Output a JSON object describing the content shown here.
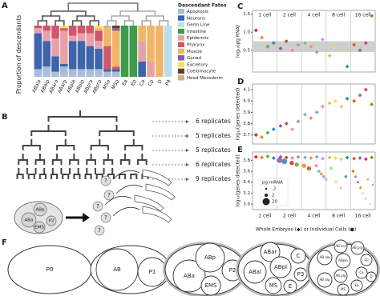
{
  "panel_labels": [
    "A",
    "B",
    "C",
    "D",
    "E",
    "F"
  ],
  "chart_data": [
    {
      "type": "bar",
      "stacked": true,
      "ylabel": "Proportion of descendants",
      "legend_title": "Descendant Fates",
      "ylim": [
        0,
        1
      ],
      "categories": [
        "ABala",
        "ABalp",
        "ABara",
        "ABarp",
        "ABpla",
        "ABplp",
        "ABpra",
        "ABprp",
        "MSa",
        "MSp",
        "Ea",
        "Ep",
        "Ca",
        "Cp",
        "D",
        "P4"
      ],
      "series": [
        {
          "name": "Apoptosis",
          "color": "#a9bcd8",
          "values": [
            0.15,
            0.2,
            0.1,
            0.2,
            0.15,
            0.15,
            0.15,
            0.15,
            0.1,
            0.1,
            0,
            0,
            0,
            0,
            0,
            0
          ]
        },
        {
          "name": "Neurons",
          "color": "#3d64ad",
          "values": [
            0.7,
            0.5,
            0.3,
            0.05,
            0.55,
            0.55,
            0.45,
            0.4,
            0.05,
            0.05,
            0,
            0,
            0.3,
            0,
            0,
            0
          ]
        },
        {
          "name": "Germ Line",
          "color": "#b9dfe6",
          "values": [
            0,
            0,
            0,
            0,
            0,
            0,
            0,
            0,
            0,
            0,
            0,
            0,
            0,
            0,
            0,
            1
          ]
        },
        {
          "name": "Intestine",
          "color": "#3e9c4a",
          "values": [
            0,
            0,
            0,
            0,
            0,
            0,
            0,
            0,
            0,
            0,
            1,
            1,
            0,
            0,
            0,
            0
          ]
        },
        {
          "name": "Epidermis",
          "color": "#e9a0aa",
          "values": [
            0.1,
            0.2,
            0.35,
            0.65,
            0.1,
            0.15,
            0.25,
            0.15,
            0,
            0,
            0,
            0,
            0.4,
            0.3,
            0,
            0
          ]
        },
        {
          "name": "Pharynx",
          "color": "#d0566a",
          "values": [
            0.05,
            0.1,
            0.25,
            0.05,
            0.2,
            0.15,
            0.15,
            0.2,
            0.45,
            0.05,
            0,
            0,
            0,
            0,
            0,
            0
          ]
        },
        {
          "name": "Muscle",
          "color": "#f2b567",
          "values": [
            0,
            0,
            0,
            0,
            0,
            0,
            0,
            0.05,
            0.35,
            0.7,
            0,
            0,
            0.3,
            0.7,
            1,
            0
          ]
        },
        {
          "name": "Gonad",
          "color": "#8b5a9e",
          "values": [
            0,
            0,
            0,
            0,
            0,
            0,
            0,
            0,
            0,
            0.05,
            0,
            0,
            0,
            0,
            0,
            0
          ]
        },
        {
          "name": "Excretory",
          "color": "#f6e15a",
          "values": [
            0,
            0,
            0,
            0.05,
            0,
            0,
            0,
            0.05,
            0,
            0,
            0,
            0,
            0,
            0,
            0,
            0
          ]
        },
        {
          "name": "Coelomocyte",
          "color": "#6b3b22",
          "values": [
            0,
            0,
            0,
            0,
            0,
            0,
            0,
            0,
            0,
            0.05,
            0,
            0,
            0,
            0,
            0,
            0
          ]
        },
        {
          "name": "Head Mesoderm",
          "color": "#c8b58a",
          "values": [
            0,
            0,
            0,
            0,
            0,
            0,
            0,
            0,
            0.05,
            0,
            0,
            0,
            0,
            0,
            0,
            0
          ]
        }
      ]
    },
    {
      "type": "scatter",
      "marker": "diamond",
      "ylabel": "log₁₀(pg RNA)",
      "stages": [
        "1 cell",
        "2 cell",
        "4 cell",
        "8 cell",
        "16 cell"
      ],
      "xlim": [
        0,
        25
      ],
      "ylim": [
        -0.1,
        1.6
      ],
      "yticks": [
        0.5,
        {
          "value": 1,
          "label": "1.0"
        },
        1.5
      ],
      "band": [
        0.45,
        0.75
      ],
      "x": [
        0.7,
        1.9,
        3.1,
        4.3,
        5.7,
        6.9,
        8.1,
        9.3,
        10.7,
        11.9,
        13.1,
        14.3,
        15.7,
        16.9,
        18.1,
        19.3,
        20.7,
        21.9,
        23.1,
        24.3
      ],
      "values": [
        1.05,
        0.85,
        0.6,
        0.7,
        0.55,
        0.75,
        0.5,
        0.65,
        0.7,
        0.6,
        0.45,
        0.8,
        0.35,
        0.6,
        0.55,
        0.05,
        0.65,
        0.5,
        0.7,
        1.45
      ],
      "colors": [
        "#e41a1c",
        "#ff7f00",
        "#4daf4a",
        "#377eb8",
        "#984ea3",
        "#a65628",
        "#f781bf",
        "#999999",
        "#66c2a5",
        "#fc8d62",
        "#8da0cb",
        "#e78ac3",
        "#a6d854",
        "#ffd92f",
        "#e5c494",
        "#1b9e77",
        "#d95f02",
        "#7570b3",
        "#e7298a",
        "#66a61e"
      ]
    },
    {
      "type": "scatter",
      "marker": "diamond",
      "ylabel": "log₁₀(genes detected)",
      "xlim": [
        0,
        25
      ],
      "ylim": [
        3.62,
        4.15
      ],
      "yticks": [
        3.7,
        3.8,
        3.9,
        {
          "value": 4,
          "label": "4.0"
        },
        4.1
      ],
      "x": [
        0.7,
        1.9,
        3.1,
        4.3,
        5.7,
        6.9,
        8.1,
        9.3,
        10.7,
        11.9,
        13.1,
        14.3,
        15.7,
        16.9,
        18.1,
        19.3,
        20.7,
        21.9,
        23.1,
        24.3
      ],
      "values": [
        3.7,
        3.68,
        3.72,
        3.75,
        3.78,
        3.8,
        3.75,
        3.82,
        3.88,
        3.85,
        3.9,
        3.95,
        3.98,
        4.0,
        3.95,
        4.02,
        4.0,
        4.05,
        4.1,
        3.97
      ],
      "colors": [
        "#e41a1c",
        "#ff7f00",
        "#4daf4a",
        "#377eb8",
        "#984ea3",
        "#a65628",
        "#f781bf",
        "#999999",
        "#66c2a5",
        "#fc8d62",
        "#8da0cb",
        "#e78ac3",
        "#a6d854",
        "#ffd92f",
        "#e5c494",
        "#1b9e77",
        "#d95f02",
        "#7570b3",
        "#e7298a",
        "#66a61e"
      ]
    },
    {
      "type": "scatter",
      "marker": "diamond",
      "ylabel": "log₁₀(genes detected)",
      "xlabel": "Whole Embryos (◆) or Individual Cells (●)",
      "stages": [
        "1 cell",
        "2 cell",
        "4 cell",
        "8 cell",
        "16 cell"
      ],
      "xlim": [
        0,
        25
      ],
      "ylim": [
        2.9,
        3.95
      ],
      "yticks": [
        {
          "value": 3,
          "label": "3.0"
        },
        3.2,
        3.4,
        3.6,
        3.8
      ],
      "x": [
        0.7,
        1.9,
        3.1,
        4.3,
        5.7,
        6.9,
        8.1,
        9.3,
        10.7,
        11.9,
        13.1,
        14.3,
        15.7,
        16.9,
        18.1,
        19.3,
        20.7,
        21.9,
        23.1,
        24.3
      ],
      "values": [
        3.86,
        3.85,
        3.87,
        3.84,
        3.86,
        3.85,
        3.84,
        3.86,
        3.85,
        3.84,
        3.86,
        3.83,
        3.85,
        3.84,
        3.82,
        3.85,
        3.83,
        3.84,
        3.82,
        3.85
      ],
      "colors": [
        "#e41a1c",
        "#ff7f00",
        "#4daf4a",
        "#377eb8",
        "#984ea3",
        "#a65628",
        "#f781bf",
        "#999999",
        "#66c2a5",
        "#fc8d62",
        "#8da0cb",
        "#e78ac3",
        "#a6d854",
        "#ffd92f",
        "#e5c494",
        "#1b9e77",
        "#d95f02",
        "#7570b3",
        "#e7298a",
        "#66a61e"
      ],
      "cells": {
        "x": [
          5.5,
          6.5,
          8,
          9,
          10.5,
          11.5,
          13,
          13.5,
          14,
          14.5,
          15,
          16,
          17,
          18,
          19,
          20.5,
          21,
          21.5,
          22,
          22.5,
          23,
          23.5,
          24,
          24.5
        ],
        "values": [
          3.8,
          3.78,
          3.75,
          3.72,
          3.7,
          3.65,
          3.7,
          3.6,
          3.55,
          3.5,
          3.45,
          3.65,
          3.4,
          3.3,
          3.5,
          3.6,
          3.5,
          3.4,
          3.3,
          3.2,
          3.1,
          3.45,
          3.0,
          3.35
        ],
        "sizes": [
          10,
          10,
          5,
          5,
          5,
          5,
          2,
          2,
          2,
          2,
          1,
          2,
          1,
          0.5,
          1,
          1,
          0.5,
          0.5,
          0.5,
          0.2,
          0.2,
          0.5,
          0.2,
          0.2
        ],
        "colors": [
          "#984ea3",
          "#377eb8",
          "#e41a1c",
          "#4daf4a",
          "#ff7f00",
          "#a65628",
          "#f781bf",
          "#66c2a5",
          "#fc8d62",
          "#8da0cb",
          "#e78ac3",
          "#a6d854",
          "#ffd92f",
          "#bbbbbb",
          "#1b9e77",
          "#d95f02",
          "#7570b3",
          "#e7298a",
          "#66a61e",
          "#cccccc",
          "#bbbbbb",
          "#e6ab02",
          "#cccccc",
          "#999999"
        ]
      },
      "size_legend": {
        "title": "pg mRNA",
        "values": [
          {
            "value": 0.2,
            "label": ".2"
          },
          2,
          20
        ]
      }
    }
  ],
  "lineage": {
    "replicates": [
      "6 replicates",
      "5 replicates",
      "5 replicates",
      "6 replicates",
      "9 replicates"
    ],
    "embryo_cells": [
      "ABp",
      "ABa",
      "P2",
      "EMS"
    ],
    "unknown": [
      "?",
      "?",
      "?",
      "?",
      "?"
    ]
  },
  "embryos": [
    [
      "P0"
    ],
    [
      "AB",
      "P1"
    ],
    [
      "ABa",
      "ABp",
      "P2",
      "EMS"
    ],
    [
      "ABar",
      "ABal",
      "ABpl",
      "C",
      "P3",
      "MS",
      "E"
    ],
    [
      "AB ala",
      "AB alp",
      "AB ara",
      "ABpla",
      "AB plp",
      "AB prp",
      "Cp",
      "Ca",
      "Ea",
      "D",
      "MS"
    ]
  ]
}
